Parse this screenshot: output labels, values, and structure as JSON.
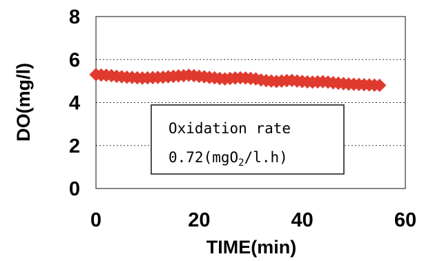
{
  "chart_data": {
    "type": "scatter",
    "title": "",
    "xlabel": "TIME(min)",
    "ylabel": "DO(mg/l)",
    "xlim": [
      0,
      60
    ],
    "ylim": [
      0,
      8
    ],
    "xticks": [
      "0",
      "20",
      "40",
      "60"
    ],
    "yticks": [
      "0",
      "2",
      "4",
      "6",
      "8"
    ],
    "grid": {
      "y_major": true,
      "style": "dotted",
      "values": [
        2,
        4,
        6
      ]
    },
    "legend": "none",
    "series": [
      {
        "marker": "diamond",
        "color": "#e03a2f",
        "x": [
          0,
          1,
          2,
          3,
          4,
          5,
          6,
          7,
          8,
          9,
          10,
          11,
          12,
          13,
          14,
          15,
          16,
          17,
          18,
          19,
          20,
          21,
          22,
          23,
          24,
          25,
          26,
          27,
          28,
          29,
          30,
          31,
          32,
          33,
          34,
          35,
          36,
          37,
          38,
          39,
          40,
          41,
          42,
          43,
          44,
          45,
          46,
          47,
          48,
          49,
          50,
          51,
          52,
          53,
          54,
          55
        ],
        "y": [
          5.3,
          5.28,
          5.27,
          5.25,
          5.22,
          5.2,
          5.18,
          5.17,
          5.15,
          5.14,
          5.15,
          5.16,
          5.17,
          5.18,
          5.2,
          5.22,
          5.24,
          5.25,
          5.27,
          5.25,
          5.22,
          5.2,
          5.17,
          5.15,
          5.12,
          5.1,
          5.12,
          5.14,
          5.15,
          5.14,
          5.12,
          5.1,
          5.05,
          5.02,
          5.0,
          4.98,
          5.0,
          5.02,
          5.03,
          5.0,
          4.98,
          4.96,
          4.95,
          4.96,
          4.97,
          4.95,
          4.92,
          4.9,
          4.88,
          4.86,
          4.85,
          4.84,
          4.83,
          4.82,
          4.81,
          4.8
        ]
      }
    ],
    "annotation": {
      "line1": "Oxidation rate",
      "line2_prefix": "0.72(mgO",
      "line2_subscript": "2",
      "line2_suffix": "/l.h)"
    }
  }
}
